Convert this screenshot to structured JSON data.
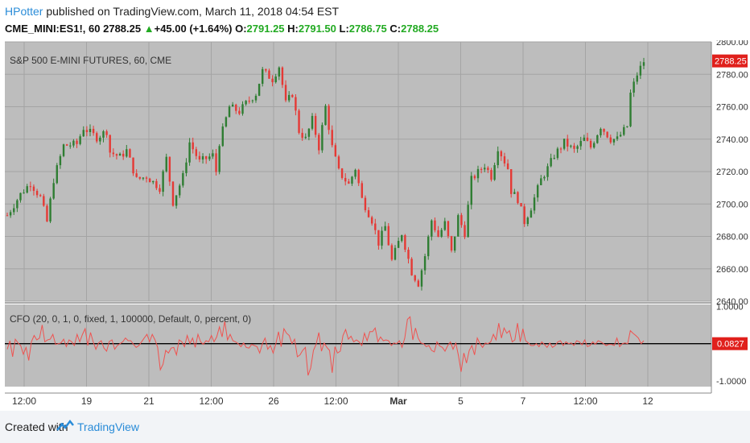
{
  "header": {
    "user": "HPotter",
    "published_text": " published on TradingView.com, March 11, 2018 04:54 EST",
    "symbol": "CME_MINI:ES1!, 60",
    "last": "2788.25",
    "change_arrow": "▲",
    "change": "+45.00 (+1.64%)",
    "open_label": "O:",
    "open": "2791.25",
    "high_label": "H:",
    "high": "2791.50",
    "low_label": "L:",
    "low": "2786.75",
    "close_label": "C:",
    "close": "2788.25"
  },
  "footer": {
    "created_with": "Created with",
    "brand": "TradingView"
  },
  "colors": {
    "plot_bg": "#bdbdbd",
    "up": "#2e7d32",
    "down": "#e53935",
    "cfo_line": "#ef5350",
    "zero_line": "#000000",
    "price_tag": "#e0201c"
  },
  "chart_data": [
    {
      "type": "candlestick",
      "title": "S&P 500 E-MINI FUTURES, 60, CME",
      "ylim": [
        2640,
        2800
      ],
      "y_ticks": [
        "2800.00",
        "2780.00",
        "2760.00",
        "2740.00",
        "2720.00",
        "2700.00",
        "2680.00",
        "2660.00",
        "2640.00"
      ],
      "last_price_label": "2788.25",
      "last_price": 2788.25,
      "x_ticks": [
        "12:00",
        "19",
        "21",
        "12:00",
        "26",
        "12:00",
        "Mar",
        "5",
        "7",
        "12:00",
        "12"
      ],
      "path_points": [
        [
          0,
          2693
        ],
        [
          4,
          2706
        ],
        [
          7,
          2713
        ],
        [
          10,
          2704
        ],
        [
          12,
          2689
        ],
        [
          14,
          2715
        ],
        [
          17,
          2736
        ],
        [
          21,
          2737
        ],
        [
          23,
          2747
        ],
        [
          27,
          2741
        ],
        [
          30,
          2745
        ],
        [
          31,
          2732
        ],
        [
          34,
          2729
        ],
        [
          36,
          2733
        ],
        [
          39,
          2715
        ],
        [
          42,
          2717
        ],
        [
          46,
          2710
        ],
        [
          48,
          2728
        ],
        [
          50,
          2701
        ],
        [
          53,
          2717
        ],
        [
          55,
          2738
        ],
        [
          58,
          2726
        ],
        [
          62,
          2730
        ],
        [
          63,
          2720
        ],
        [
          64,
          2738
        ],
        [
          67,
          2760
        ],
        [
          70,
          2757
        ],
        [
          72,
          2762
        ],
        [
          75,
          2768
        ],
        [
          77,
          2782
        ],
        [
          80,
          2777
        ],
        [
          82,
          2785
        ],
        [
          84,
          2762
        ],
        [
          86,
          2768
        ],
        [
          88,
          2745
        ],
        [
          90,
          2740
        ],
        [
          92,
          2752
        ],
        [
          94,
          2735
        ],
        [
          96,
          2760
        ],
        [
          98,
          2735
        ],
        [
          100,
          2720
        ],
        [
          103,
          2712
        ],
        [
          105,
          2722
        ],
        [
          107,
          2703
        ],
        [
          110,
          2690
        ],
        [
          112,
          2676
        ],
        [
          114,
          2686
        ],
        [
          116,
          2665
        ],
        [
          119,
          2682
        ],
        [
          122,
          2658
        ],
        [
          124,
          2651
        ],
        [
          126,
          2668
        ],
        [
          128,
          2690
        ],
        [
          130,
          2680
        ],
        [
          132,
          2688
        ],
        [
          134,
          2670
        ],
        [
          136,
          2692
        ],
        [
          138,
          2682
        ],
        [
          140,
          2715
        ],
        [
          144,
          2724
        ],
        [
          146,
          2717
        ],
        [
          148,
          2735
        ],
        [
          151,
          2722
        ],
        [
          152,
          2708
        ],
        [
          154,
          2703
        ],
        [
          156,
          2689
        ],
        [
          158,
          2698
        ],
        [
          161,
          2715
        ],
        [
          163,
          2722
        ],
        [
          165,
          2730
        ],
        [
          168,
          2738
        ],
        [
          171,
          2733
        ],
        [
          174,
          2740
        ],
        [
          176,
          2735
        ],
        [
          179,
          2748
        ],
        [
          182,
          2740
        ],
        [
          184,
          2740
        ],
        [
          187,
          2748
        ],
        [
          188,
          2768
        ],
        [
          190,
          2780
        ],
        [
          192,
          2788
        ]
      ]
    },
    {
      "type": "line",
      "title": "CFO (20, 0, 1, 0, fixed, 1, 100000, Default, 0, percent, 0)",
      "ylim": [
        -1.15,
        1.05
      ],
      "y_ticks": [
        "1.0000",
        "-1.0000"
      ],
      "zero_value": 0,
      "last_value_label": "0.0827",
      "series": [
        {
          "values": [
            -0.15,
            0.08,
            -0.35,
            0.12,
            0.02,
            -0.05,
            -0.28,
            -0.1,
            -0.45,
            0.05,
            0.22,
            0.1,
            0.15,
            0.5,
            0.05,
            0.1,
            0.12,
            0.25,
            -0.02,
            0.0,
            0.02,
            0.12,
            -0.08,
            0.1,
            0.05,
            -0.05,
            0.25,
            0.05,
            0.25,
            0.4,
            -0.05,
            0.3,
            0.05,
            -0.15,
            0.02,
            0.08,
            -0.12,
            -0.2,
            0.06,
            0.1,
            -0.15,
            -0.05,
            0.0,
            0.05,
            0.15,
            0.08,
            0.08,
            -0.02,
            -0.1,
            -0.05,
            0.05,
            0.15,
            0.25,
            0.05,
            0.25,
            0.1,
            -0.1,
            -0.7,
            -0.55,
            -0.18,
            -0.25,
            -0.12,
            -0.1,
            -0.3,
            0.1,
            0.05,
            -0.08,
            0.22,
            0.0,
            0.15,
            -0.1,
            0.25,
            0.05,
            -0.02,
            0.08,
            0.05,
            0.22,
            0.05,
            0.18,
            0.45,
            0.18,
            0.6,
            0.1,
            0.25,
            0.08,
            0.05,
            0.0,
            -0.08,
            0.02,
            -0.1,
            -0.12,
            -0.02,
            -0.05,
            -0.08,
            -0.25,
            0.0,
            0.15,
            -0.15,
            -0.05,
            -0.25,
            0.0,
            0.32,
            -0.08,
            0.4,
            0.28,
            0.22,
            0.0,
            0.12,
            -0.35,
            -0.3,
            -0.18,
            -0.1,
            -0.85,
            -0.65,
            -0.18,
            -0.02,
            0.3,
            -0.2,
            0.02,
            -0.1,
            -0.18,
            -0.78,
            -0.08,
            -0.25,
            -0.2,
            0.22,
            0.38,
            0.12,
            0.2,
            0.05,
            0.1,
            0.05,
            -0.05,
            0.28,
            0.08,
            0.32,
            0.32,
            0.42,
            0.05,
            0.18,
            0.08,
            0.1,
            0.08,
            -0.05,
            0.02,
            0.0,
            0.08,
            -0.1,
            0.15,
            0.65,
            0.72,
            0.1,
            0.42,
            0.15,
            0.02,
            0.0,
            -0.08,
            -0.05,
            -0.18,
            -0.22,
            0.05,
            -0.06,
            -0.1,
            -0.2,
            -0.05,
            0.05,
            -0.15,
            0.02,
            -0.32,
            -0.75,
            -0.25,
            -0.52,
            -0.18,
            -0.05,
            -0.3,
            0.15,
            0.0,
            -0.1,
            0.02,
            0.0,
            0.05,
            0.25,
            0.1,
            0.55,
            0.15,
            0.42,
            0.28,
            0.35,
            0.05,
            0.1,
            0.55,
            0.05,
            0.4,
            0.08,
            0.02,
            -0.05,
            -0.05,
            0.0,
            -0.08,
            0.05,
            -0.02,
            -0.1,
            0.02,
            -0.1,
            -0.05,
            0.05,
            0.08,
            -0.05,
            0.05,
            0.0,
            0.02,
            -0.05,
            0.08,
            0.05,
            -0.03,
            0.1,
            -0.08,
            -0.05,
            0.05,
            -0.02,
            0.08,
            0.05,
            0.0,
            -0.05,
            -0.02,
            -0.02,
            -0.05,
            0.15,
            -0.08,
            0.0,
            0.02,
            0.0,
            0.35,
            0.28,
            0.22,
            0.15,
            0.0,
            0.08
          ]
        }
      ]
    }
  ]
}
